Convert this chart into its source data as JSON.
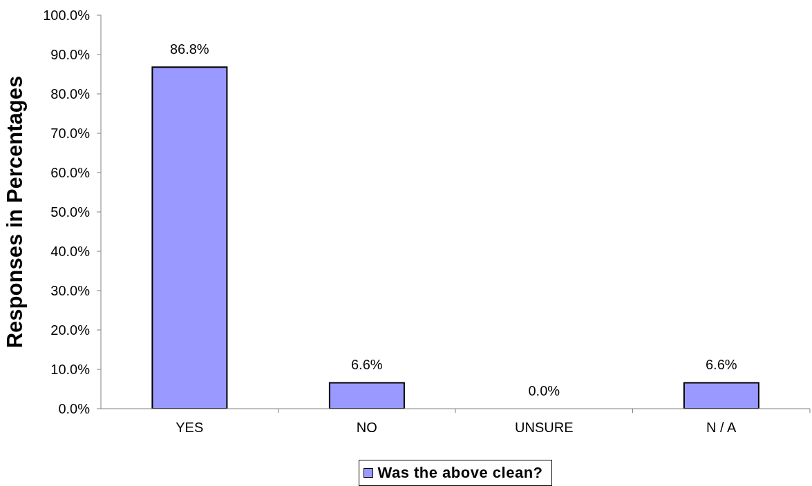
{
  "chart_data": {
    "type": "bar",
    "ylabel": "Responses in Percentages",
    "categories": [
      "YES",
      "NO",
      "UNSURE",
      "N / A"
    ],
    "series": [
      {
        "name": "Was the above clean?",
        "color": "#9999ff",
        "values": [
          86.8,
          6.6,
          0.0,
          6.6
        ],
        "value_labels": [
          "86.8%",
          "6.6%",
          "0.0%",
          "6.6%"
        ]
      }
    ],
    "ylim": [
      0,
      100
    ],
    "yticks": [
      {
        "value": 0,
        "label": "0.0%"
      },
      {
        "value": 10,
        "label": "10.0%"
      },
      {
        "value": 20,
        "label": "20.0%"
      },
      {
        "value": 30,
        "label": "30.0%"
      },
      {
        "value": 40,
        "label": "40.0%"
      },
      {
        "value": 50,
        "label": "50.0%"
      },
      {
        "value": 60,
        "label": "60.0%"
      },
      {
        "value": 70,
        "label": "70.0%"
      },
      {
        "value": 80,
        "label": "80.0%"
      },
      {
        "value": 90,
        "label": "90.0%"
      },
      {
        "value": 100,
        "label": "100.0%"
      }
    ],
    "grid": false,
    "legend": "bottom"
  }
}
